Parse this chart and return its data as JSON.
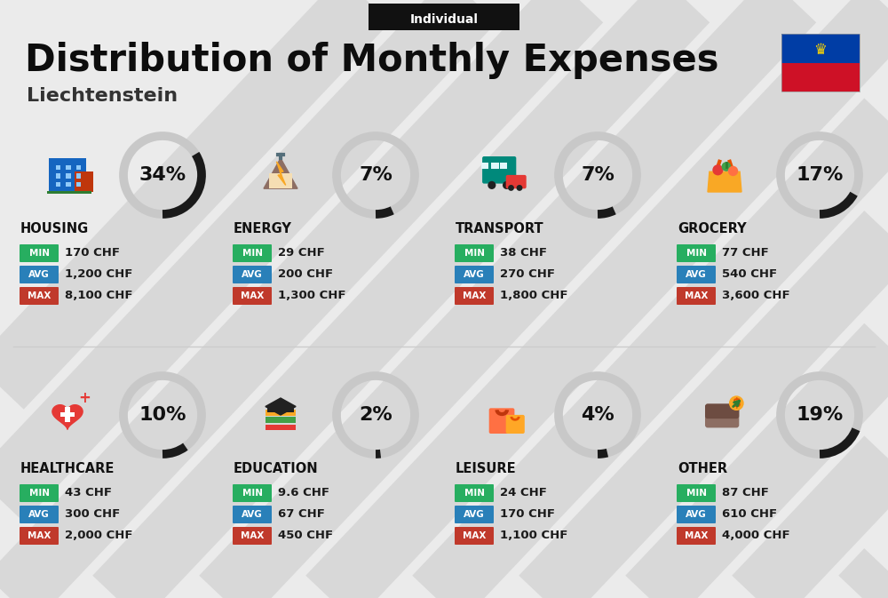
{
  "title": "Distribution of Monthly Expenses",
  "subtitle": "Liechtenstein",
  "tag": "Individual",
  "bg_color": "#ebebeb",
  "categories": [
    {
      "name": "HOUSING",
      "pct": 34,
      "min_val": "170 CHF",
      "avg_val": "1,200 CHF",
      "max_val": "8,100 CHF",
      "col": 0,
      "row": 0
    },
    {
      "name": "ENERGY",
      "pct": 7,
      "min_val": "29 CHF",
      "avg_val": "200 CHF",
      "max_val": "1,300 CHF",
      "col": 1,
      "row": 0
    },
    {
      "name": "TRANSPORT",
      "pct": 7,
      "min_val": "38 CHF",
      "avg_val": "270 CHF",
      "max_val": "1,800 CHF",
      "col": 2,
      "row": 0
    },
    {
      "name": "GROCERY",
      "pct": 17,
      "min_val": "77 CHF",
      "avg_val": "540 CHF",
      "max_val": "3,600 CHF",
      "col": 3,
      "row": 0
    },
    {
      "name": "HEALTHCARE",
      "pct": 10,
      "min_val": "43 CHF",
      "avg_val": "300 CHF",
      "max_val": "2,000 CHF",
      "col": 0,
      "row": 1
    },
    {
      "name": "EDUCATION",
      "pct": 2,
      "min_val": "9.6 CHF",
      "avg_val": "67 CHF",
      "max_val": "450 CHF",
      "col": 1,
      "row": 1
    },
    {
      "name": "LEISURE",
      "pct": 4,
      "min_val": "24 CHF",
      "avg_val": "170 CHF",
      "max_val": "1,100 CHF",
      "col": 2,
      "row": 1
    },
    {
      "name": "OTHER",
      "pct": 19,
      "min_val": "87 CHF",
      "avg_val": "610 CHF",
      "max_val": "4,000 CHF",
      "col": 3,
      "row": 1
    }
  ],
  "min_color": "#27ae60",
  "avg_color": "#2980b9",
  "max_color": "#c0392b",
  "ring_color": "#1a1a1a",
  "ring_bg_color": "#c8c8c8",
  "pct_fontsize": 16,
  "name_fontsize": 10.5,
  "val_fontsize": 9.5,
  "badge_fontsize": 7.5,
  "diag_color": "#d8d8d8",
  "flag_blue": "#003DA5",
  "flag_red": "#CE1126",
  "flag_crown": "#FFD700"
}
